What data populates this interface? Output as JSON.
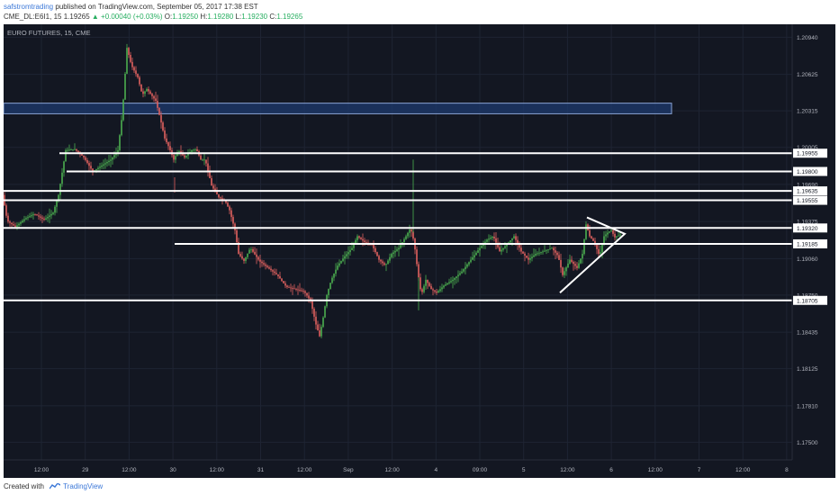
{
  "header": {
    "user": "safstromtrading",
    "published_text": " published on TradingView.com, September 05, 2017 17:38 EST",
    "symbol": "CME_DL:E6I1, 15",
    "price": "1.19265",
    "change": "▲ +0.00040 (+0.03%)",
    "o_label": "O:",
    "o_value": "1.19250",
    "h_label": "H:",
    "h_value": "1.19280",
    "l_label": "L:",
    "l_value": "1.19230",
    "c_label": "C:",
    "c_value": "1.19265"
  },
  "footer": {
    "created_with": "Created with",
    "brand": "TradingView"
  },
  "chart_data": {
    "type": "candlestick",
    "title": "EURO FUTURES, 15, CME",
    "ylim": [
      1.1735,
      1.2105
    ],
    "y_ticks": [
      "1.20940",
      "1.20625",
      "1.20315",
      "1.20005",
      "1.19690",
      "1.19375",
      "1.19060",
      "1.18750",
      "1.18435",
      "1.18125",
      "1.17810",
      "1.17500"
    ],
    "x_ticks": [
      "12:00",
      "29",
      "12:00",
      "30",
      "12:00",
      "31",
      "12:00",
      "Sep",
      "12:00",
      "4",
      "09:00",
      "5",
      "12:00",
      "6",
      "12:00",
      "7",
      "12:00",
      "8"
    ],
    "price_path": [
      [
        0,
        1.196
      ],
      [
        5,
        1.1938
      ],
      [
        14,
        1.1933
      ],
      [
        25,
        1.194
      ],
      [
        35,
        1.1944
      ],
      [
        46,
        1.1939
      ],
      [
        56,
        1.1945
      ],
      [
        62,
        1.196
      ],
      [
        70,
        1.1998
      ],
      [
        80,
        1.1999
      ],
      [
        90,
        1.1992
      ],
      [
        100,
        1.198
      ],
      [
        110,
        1.1985
      ],
      [
        120,
        1.199
      ],
      [
        128,
        1.1998
      ],
      [
        133,
        1.203
      ],
      [
        138,
        1.2085
      ],
      [
        143,
        1.207
      ],
      [
        150,
        1.206
      ],
      [
        155,
        1.2045
      ],
      [
        160,
        1.205
      ],
      [
        165,
        1.2045
      ],
      [
        170,
        1.204
      ],
      [
        175,
        1.2025
      ],
      [
        180,
        1.2008
      ],
      [
        185,
        1.2
      ],
      [
        190,
        1.199
      ],
      [
        195,
        1.1998
      ],
      [
        202,
        1.1992
      ],
      [
        210,
        1.1998
      ],
      [
        215,
        1.1999
      ],
      [
        220,
        1.199
      ],
      [
        225,
        1.199
      ],
      [
        232,
        1.1968
      ],
      [
        240,
        1.1958
      ],
      [
        247,
        1.1955
      ],
      [
        252,
        1.1947
      ],
      [
        258,
        1.193
      ],
      [
        262,
        1.191
      ],
      [
        268,
        1.1904
      ],
      [
        275,
        1.1915
      ],
      [
        285,
        1.1904
      ],
      [
        295,
        1.1898
      ],
      [
        305,
        1.1892
      ],
      [
        315,
        1.1882
      ],
      [
        325,
        1.188
      ],
      [
        335,
        1.1878
      ],
      [
        342,
        1.187
      ],
      [
        348,
        1.185
      ],
      [
        352,
        1.184
      ],
      [
        356,
        1.1856
      ],
      [
        360,
        1.1875
      ],
      [
        365,
        1.1888
      ],
      [
        372,
        1.19
      ],
      [
        380,
        1.1908
      ],
      [
        388,
        1.1915
      ],
      [
        394,
        1.1925
      ],
      [
        402,
        1.192
      ],
      [
        410,
        1.1918
      ],
      [
        418,
        1.1905
      ],
      [
        425,
        1.19
      ],
      [
        432,
        1.191
      ],
      [
        440,
        1.1915
      ],
      [
        448,
        1.1925
      ],
      [
        453,
        1.1932
      ],
      [
        457,
        1.192
      ],
      [
        461,
        1.1895
      ],
      [
        465,
        1.1875
      ],
      [
        470,
        1.1888
      ],
      [
        476,
        1.188
      ],
      [
        482,
        1.1877
      ],
      [
        490,
        1.1883
      ],
      [
        500,
        1.1888
      ],
      [
        510,
        1.1895
      ],
      [
        520,
        1.1905
      ],
      [
        530,
        1.1915
      ],
      [
        538,
        1.1922
      ],
      [
        545,
        1.1925
      ],
      [
        552,
        1.1912
      ],
      [
        560,
        1.1918
      ],
      [
        568,
        1.1925
      ],
      [
        576,
        1.1912
      ],
      [
        584,
        1.1905
      ],
      [
        592,
        1.191
      ],
      [
        600,
        1.1912
      ],
      [
        610,
        1.1915
      ],
      [
        617,
        1.1908
      ],
      [
        622,
        1.1892
      ],
      [
        630,
        1.1905
      ],
      [
        638,
        1.1898
      ],
      [
        644,
        1.191
      ],
      [
        648,
        1.1935
      ],
      [
        652,
        1.1925
      ],
      [
        657,
        1.192
      ],
      [
        663,
        1.1908
      ],
      [
        668,
        1.1925
      ],
      [
        672,
        1.1928
      ],
      [
        676,
        1.193
      ],
      [
        680,
        1.1924
      ],
      [
        686,
        1.19265
      ]
    ],
    "horizontal_lines": [
      {
        "price": 1.19955,
        "x_start": 62
      },
      {
        "price": 1.198,
        "x_start": 70
      },
      {
        "price": 1.19635,
        "x_start": 0
      },
      {
        "price": 1.19555,
        "x_start": 0
      },
      {
        "price": 1.1932,
        "x_start": 0
      },
      {
        "price": 1.19185,
        "x_start": 190
      },
      {
        "price": 1.18705,
        "x_start": 0
      }
    ],
    "price_labels": [
      "1.19955",
      "1.19800",
      "1.19635",
      "1.19555",
      "1.19320",
      "1.19185",
      "1.18705"
    ],
    "zone": {
      "top": 1.2038,
      "bottom": 1.2029,
      "x_start": 0,
      "x_end": 742
    },
    "triangle": [
      [
        648,
        1.1941
      ],
      [
        690,
        1.1927
      ],
      [
        618,
        1.1877
      ]
    ],
    "colors": {
      "background": "#131722",
      "grid": "#1e2433",
      "up": "#4caf50",
      "down": "#e0615f",
      "line": "#ffffff",
      "zone_fill": "#1e3a6e",
      "zone_border": "#8aa4d6",
      "axis_text": "#b2b5be"
    }
  }
}
